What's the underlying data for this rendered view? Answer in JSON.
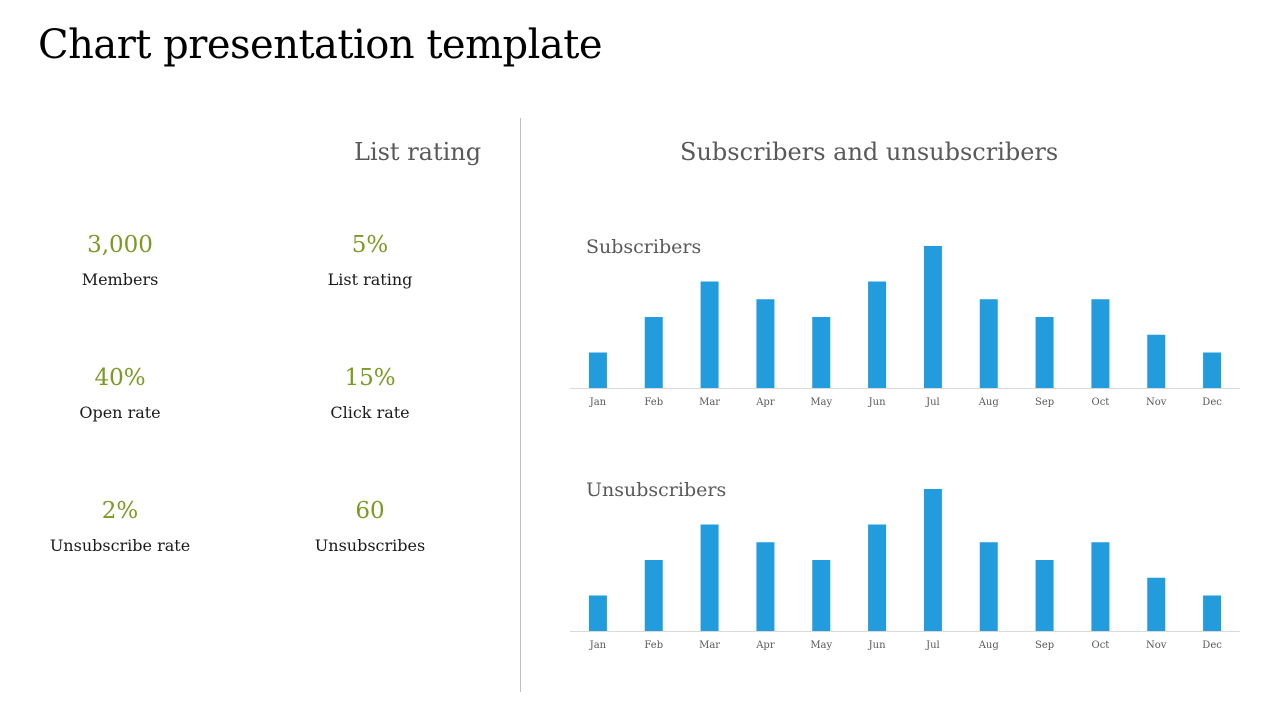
{
  "title": "Chart presentation template",
  "left_heading": "List rating",
  "right_heading": "Subscribers and unsubscribers",
  "stats": [
    {
      "value": "3,000",
      "label": "Members"
    },
    {
      "value": "5%",
      "label": "List rating"
    },
    {
      "value": "40%",
      "label": "Open rate"
    },
    {
      "value": "15%",
      "label": "Click rate"
    },
    {
      "value": "2%",
      "label": "Unsubscribe rate"
    },
    {
      "value": "60",
      "label": "Unsubscribes"
    }
  ],
  "colors": {
    "bar": "#229cdc",
    "stat_value": "#7a9a22",
    "axis": "#d9d9d9"
  },
  "chart_data": [
    {
      "type": "bar",
      "title": "Subscribers",
      "categories": [
        "Jan",
        "Feb",
        "Mar",
        "Apr",
        "May",
        "Jun",
        "Jul",
        "Aug",
        "Sep",
        "Oct",
        "Nov",
        "Dec"
      ],
      "values": [
        2,
        4,
        6,
        5,
        4,
        6,
        8,
        5,
        4,
        5,
        3,
        2
      ],
      "ylim": [
        0,
        8
      ],
      "grid": false,
      "xlabel": "",
      "ylabel": ""
    },
    {
      "type": "bar",
      "title": "Unsubscribers",
      "categories": [
        "Jan",
        "Feb",
        "Mar",
        "Apr",
        "May",
        "Jun",
        "Jul",
        "Aug",
        "Sep",
        "Oct",
        "Nov",
        "Dec"
      ],
      "values": [
        2,
        4,
        6,
        5,
        4,
        6,
        8,
        5,
        4,
        5,
        3,
        2
      ],
      "ylim": [
        0,
        8
      ],
      "grid": false,
      "xlabel": "",
      "ylabel": ""
    }
  ]
}
